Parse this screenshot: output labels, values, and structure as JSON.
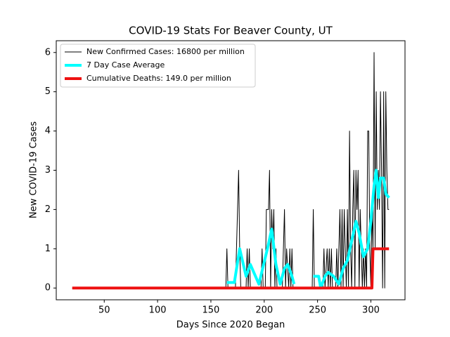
{
  "chart_data": {
    "type": "line",
    "title": "COVID-19 Stats For Beaver County, UT",
    "xlabel": "Days Since 2020 Began",
    "ylabel": "New COVID-19 Cases",
    "xlim": [
      5,
      332
    ],
    "ylim": [
      -0.3,
      6.3
    ],
    "xticks": [
      50,
      100,
      150,
      200,
      250,
      300
    ],
    "yticks": [
      0,
      1,
      2,
      3,
      4,
      5,
      6
    ],
    "grid": false,
    "legend": "upper left",
    "series": [
      {
        "name": "New Confirmed Cases: 16800 per million",
        "color": "#000000",
        "width": 1,
        "x": [
          20,
          164,
          165,
          166,
          173,
          174,
          175,
          176,
          177,
          178,
          183,
          184,
          185,
          186,
          187,
          197,
          198,
          199,
          201,
          202,
          203,
          204,
          205,
          206,
          207,
          208,
          209,
          210,
          211,
          212,
          217,
          218,
          219,
          220,
          221,
          223,
          224,
          225,
          226,
          227,
          245,
          246,
          247,
          255,
          256,
          257,
          259,
          260,
          261,
          262,
          263,
          264,
          267,
          268,
          269,
          271,
          272,
          273,
          274,
          275,
          276,
          277,
          278,
          279,
          280,
          281,
          282,
          283,
          284,
          285,
          286,
          287,
          288,
          289,
          290,
          291,
          292,
          293,
          294,
          295,
          296,
          297,
          298,
          299,
          300,
          301,
          302,
          303,
          304,
          305,
          306,
          307,
          308,
          309,
          310,
          311,
          312,
          313,
          314,
          315,
          316,
          317
        ],
        "values": [
          0,
          0,
          1,
          0,
          0,
          1,
          2,
          3,
          1,
          0,
          0,
          1,
          0,
          1,
          0,
          0,
          1,
          0,
          0,
          2,
          2,
          2,
          3,
          0,
          2,
          1,
          2,
          0,
          1,
          0,
          0,
          1,
          2,
          0,
          1,
          0,
          1,
          0,
          1,
          0,
          0,
          2,
          0,
          0,
          1,
          0,
          1,
          0,
          1,
          0,
          1,
          0,
          0,
          1,
          0,
          2,
          0,
          2,
          0,
          2,
          1,
          0,
          2,
          0,
          4,
          1,
          0,
          2,
          3,
          0,
          3,
          2,
          3,
          0,
          2,
          1,
          0,
          1,
          0,
          1,
          0,
          4,
          4,
          1,
          0,
          2,
          1,
          6,
          1,
          5,
          2,
          3,
          2,
          5,
          3,
          0,
          5,
          0,
          5,
          3,
          2,
          2
        ]
      },
      {
        "name": "7 Day Case Average",
        "color": "#00ffff",
        "width": 4,
        "x": [
          165,
          172,
          177,
          183,
          187,
          195,
          203,
          207,
          211,
          215,
          219,
          222,
          226,
          228,
          236,
          246,
          251,
          253,
          257,
          260,
          265,
          270,
          274,
          278,
          282,
          286,
          289,
          293,
          297,
          300,
          303,
          305,
          307,
          309,
          312,
          314,
          317
        ],
        "values": [
          0.14,
          0.14,
          1.0,
          0.3,
          0.6,
          0.1,
          1.0,
          1.5,
          0.6,
          0.1,
          0.5,
          0.6,
          0.3,
          0.1,
          null,
          0.3,
          0.3,
          0,
          0.3,
          0.4,
          0.3,
          0.1,
          0.5,
          0.7,
          1.2,
          1.7,
          1.4,
          0.8,
          1.0,
          1.7,
          2.6,
          3.0,
          2.3,
          2.8,
          2.8,
          2.4,
          2.3
        ]
      },
      {
        "name": "Cumulative Deaths: 149.0 per million",
        "color": "#ee1111",
        "width": 4,
        "x": [
          20,
          301,
          302,
          317
        ],
        "values": [
          0,
          0,
          1,
          1
        ]
      }
    ]
  }
}
